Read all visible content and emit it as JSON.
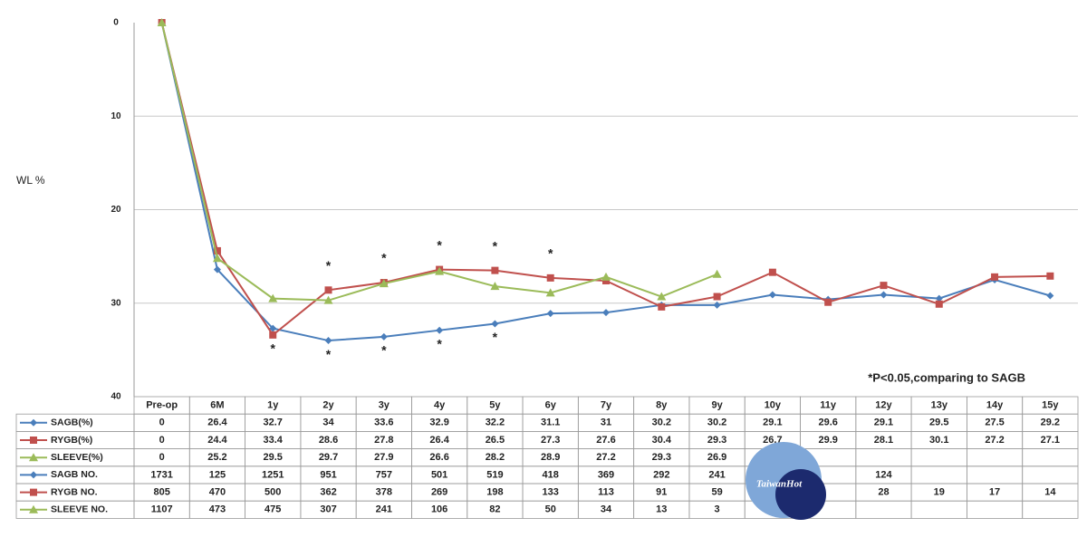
{
  "chart_data": {
    "type": "line",
    "y_label": "WL %",
    "annotation": "*P<0.05,comparing to SAGB",
    "categories": [
      "Pre-op",
      "6M",
      "1y",
      "2y",
      "3y",
      "4y",
      "5y",
      "6y",
      "7y",
      "8y",
      "9y",
      "10y",
      "11y",
      "12y",
      "13y",
      "14y",
      "15y"
    ],
    "ylim": [
      0,
      40
    ],
    "y_inverted": true,
    "yticks": [
      0,
      10,
      20,
      30,
      40
    ],
    "grid": true,
    "series": [
      {
        "name": "SAGB(%)",
        "color": "#4a7ebb",
        "marker": "diamond",
        "values": [
          0,
          26.4,
          32.7,
          34,
          33.6,
          32.9,
          32.2,
          31.1,
          31,
          30.2,
          30.2,
          29.1,
          29.6,
          29.1,
          29.5,
          27.5,
          29.2
        ]
      },
      {
        "name": "RYGB(%)",
        "color": "#c0504d",
        "marker": "square",
        "values": [
          0,
          24.4,
          33.4,
          28.6,
          27.8,
          26.4,
          26.5,
          27.3,
          27.6,
          30.4,
          29.3,
          26.7,
          29.9,
          28.1,
          30.1,
          27.2,
          27.1
        ]
      },
      {
        "name": "SLEEVE(%)",
        "color": "#9bbb59",
        "marker": "triangle",
        "values": [
          0,
          25.2,
          29.5,
          29.7,
          27.9,
          26.6,
          28.2,
          28.9,
          27.2,
          29.3,
          26.9,
          null,
          null,
          null,
          null,
          null,
          null
        ]
      }
    ],
    "count_rows": [
      {
        "name": "SAGB NO.",
        "color": "#4a7ebb",
        "marker": "diamond",
        "values": [
          1731,
          125,
          1251,
          951,
          757,
          501,
          519,
          418,
          369,
          292,
          241,
          null,
          null,
          124,
          null,
          null,
          null
        ]
      },
      {
        "name": "RYGB NO.",
        "color": "#c0504d",
        "marker": "square",
        "values": [
          805,
          470,
          500,
          362,
          378,
          269,
          198,
          133,
          113,
          91,
          59,
          null,
          null,
          28,
          19,
          17,
          14
        ]
      },
      {
        "name": "SLEEVE NO.",
        "color": "#9bbb59",
        "marker": "triangle",
        "values": [
          1107,
          473,
          475,
          307,
          241,
          106,
          82,
          50,
          34,
          13,
          3,
          null,
          null,
          null,
          null,
          null,
          null
        ]
      }
    ],
    "significance": {
      "text": "*",
      "upper": [
        "2y",
        "3y",
        "4y",
        "5y",
        "6y"
      ],
      "lower": [
        "1y",
        "2y",
        "3y",
        "4y",
        "5y"
      ]
    },
    "watermark": "TaiwanHot"
  }
}
